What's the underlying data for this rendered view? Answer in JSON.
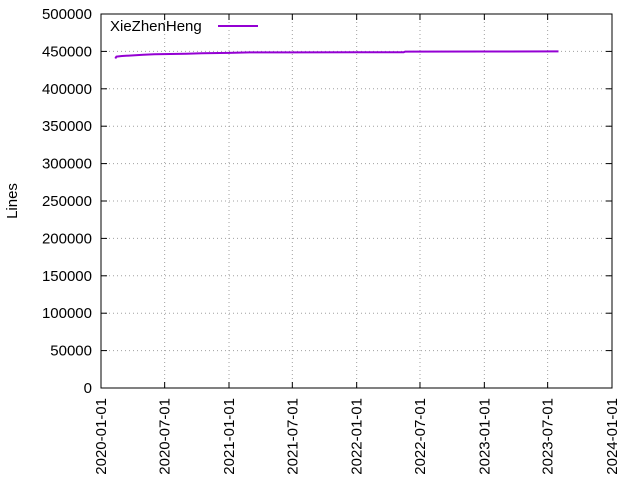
{
  "chart_data": {
    "type": "line",
    "title": "",
    "xlabel": "",
    "ylabel": "Lines",
    "x_axis": {
      "type": "date",
      "range": [
        "2020-01-01",
        "2024-01-01"
      ],
      "ticks": [
        "2020-01-01",
        "2020-07-01",
        "2021-01-01",
        "2021-07-01",
        "2022-01-01",
        "2022-07-01",
        "2023-01-01",
        "2023-07-01",
        "2024-01-01"
      ]
    },
    "y_axis": {
      "range": [
        0,
        500000
      ],
      "ticks": [
        "0",
        "50000",
        "100000",
        "150000",
        "200000",
        "250000",
        "300000",
        "350000",
        "400000",
        "450000",
        "500000"
      ]
    },
    "grid": "dotted",
    "legend_position": "top-left",
    "series": [
      {
        "name": "XieZhenHeng",
        "color": "#9400d3",
        "points": [
          {
            "x": "2020-02-11",
            "y": 440500
          },
          {
            "x": "2020-02-14",
            "y": 443000
          },
          {
            "x": "2020-03-01",
            "y": 443800
          },
          {
            "x": "2020-05-01",
            "y": 445500
          },
          {
            "x": "2020-06-01",
            "y": 446200
          },
          {
            "x": "2020-09-01",
            "y": 446800
          },
          {
            "x": "2020-10-15",
            "y": 447400
          },
          {
            "x": "2021-01-01",
            "y": 448000
          },
          {
            "x": "2021-03-01",
            "y": 448600
          },
          {
            "x": "2021-07-01",
            "y": 448700
          },
          {
            "x": "2022-01-01",
            "y": 448800
          },
          {
            "x": "2022-05-15",
            "y": 448800
          },
          {
            "x": "2022-05-20",
            "y": 449700
          },
          {
            "x": "2023-01-01",
            "y": 449900
          },
          {
            "x": "2023-08-01",
            "y": 450000
          }
        ]
      }
    ]
  }
}
